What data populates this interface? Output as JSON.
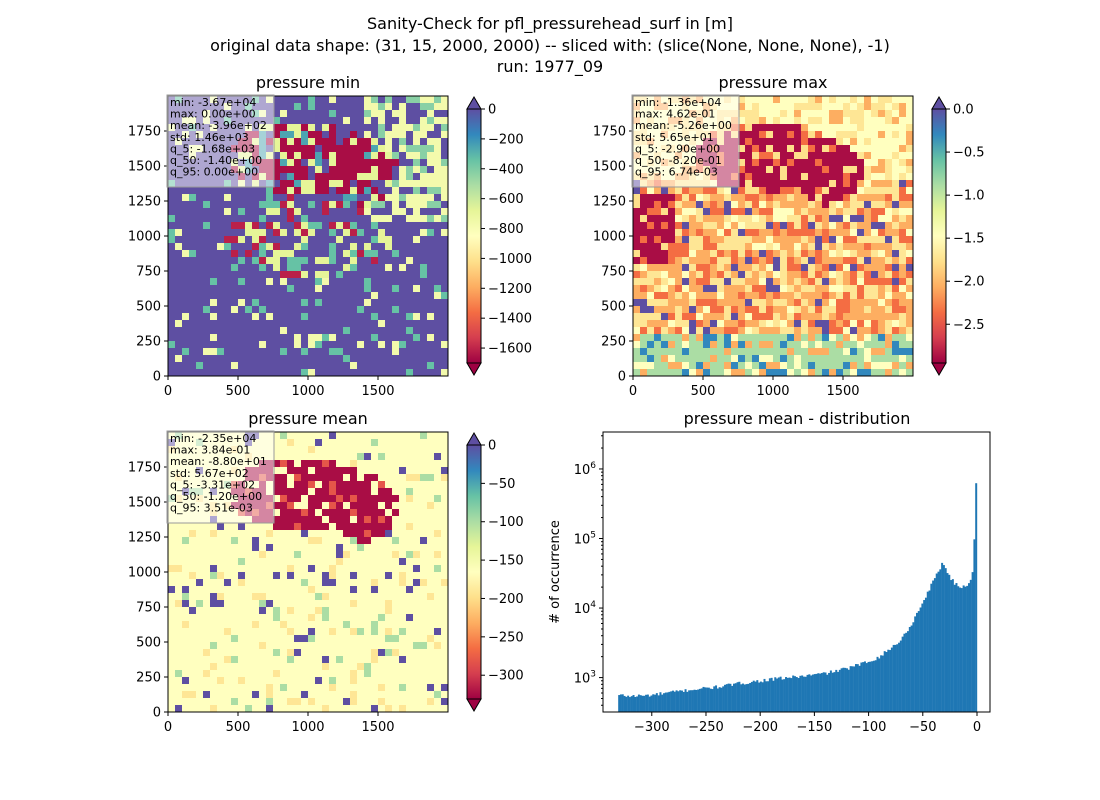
{
  "figure": {
    "title_lines": [
      "Sanity-Check for pfl_pressurehead_surf in [m]",
      "original data shape: (31, 15, 2000, 2000) -- sliced with: (slice(None, None, None), -1)",
      "run: 1977_09"
    ]
  },
  "chart_data": [
    {
      "type": "heatmap",
      "title": "pressure min",
      "colormap": "Spectral",
      "xlim": [
        0,
        2000
      ],
      "ylim": [
        0,
        2000
      ],
      "xticks": [
        0,
        500,
        1000,
        1500
      ],
      "yticks": [
        0,
        250,
        500,
        750,
        1000,
        1250,
        1500,
        1750
      ],
      "colorbar": {
        "range": [
          -1700,
          0
        ],
        "ticks": [
          0,
          -200,
          -400,
          -600,
          -800,
          -1000,
          -1200,
          -1400,
          -1600
        ],
        "tick_labels": [
          "0",
          "−200",
          "−400",
          "−600",
          "−800",
          "−1000",
          "−1200",
          "−1400",
          "−1600"
        ],
        "extend": "both"
      },
      "stats": [
        "min: -3.67e+04",
        "max: 0.00e+00",
        "mean: -3.96e+02",
        "std: 1.46e+03",
        "q_5: -1.68e+03",
        "q_50: -1.40e+00",
        "q_95: 0.00e+00"
      ]
    },
    {
      "type": "heatmap",
      "title": "pressure max",
      "colormap": "Spectral",
      "xlim": [
        0,
        2000
      ],
      "ylim": [
        0,
        2000
      ],
      "xticks": [
        0,
        500,
        1000,
        1500
      ],
      "yticks": [
        0,
        250,
        500,
        750,
        1000,
        1250,
        1500,
        1750
      ],
      "colorbar": {
        "range": [
          -2.95,
          0
        ],
        "ticks": [
          0,
          -0.5,
          -1,
          -1.5,
          -2,
          -2.5
        ],
        "tick_labels": [
          "0.0",
          "−0.5",
          "−1.0",
          "−1.5",
          "−2.0",
          "−2.5"
        ],
        "extend": "both"
      },
      "stats": [
        "min: -1.36e+04",
        "max: 4.62e-01",
        "mean: -5.26e+00",
        "std: 5.65e+01",
        "q_5: -2.90e+00",
        "q_50: -8.20e-01",
        "q_95: 6.74e-03"
      ]
    },
    {
      "type": "heatmap",
      "title": "pressure mean",
      "colormap": "Spectral",
      "xlim": [
        0,
        2000
      ],
      "ylim": [
        0,
        2000
      ],
      "xticks": [
        0,
        500,
        1000,
        1500
      ],
      "yticks": [
        0,
        250,
        500,
        750,
        1000,
        1250,
        1500,
        1750
      ],
      "colorbar": {
        "range": [
          -331,
          0
        ],
        "ticks": [
          0,
          -50,
          -100,
          -150,
          -200,
          -250,
          -300
        ],
        "tick_labels": [
          "0",
          "−50",
          "−100",
          "−150",
          "−200",
          "−250",
          "−300"
        ],
        "extend": "both"
      },
      "stats": [
        "min: -2.35e+04",
        "max: 3.84e-01",
        "mean: -8.80e+01",
        "std: 5.67e+02",
        "q_5: -3.31e+02",
        "q_50: -1.20e+00",
        "q_95: 3.51e-03"
      ]
    },
    {
      "type": "bar",
      "title": "pressure mean - distribution",
      "ylabel": "# of occurrence",
      "xlabel": "",
      "yscale": "log",
      "xlim": [
        -345,
        12
      ],
      "ylim": [
        320,
        3400000
      ],
      "xticks": [
        -300,
        -250,
        -200,
        -150,
        -100,
        -50,
        0
      ],
      "xtick_labels": [
        "−300",
        "−250",
        "−200",
        "−150",
        "−100",
        "−50",
        "0"
      ],
      "yticks": [
        1000,
        10000,
        100000,
        1000000
      ],
      "color": "#1f77b4",
      "bin_range": [
        -331,
        0
      ],
      "bins": 200,
      "anchors": [
        [
          -331,
          560
        ],
        [
          -320,
          540
        ],
        [
          -300,
          560
        ],
        [
          -280,
          620
        ],
        [
          -260,
          680
        ],
        [
          -240,
          730
        ],
        [
          -220,
          820
        ],
        [
          -200,
          900
        ],
        [
          -180,
          980
        ],
        [
          -160,
          1050
        ],
        [
          -140,
          1150
        ],
        [
          -120,
          1350
        ],
        [
          -100,
          1700
        ],
        [
          -90,
          2000
        ],
        [
          -80,
          2600
        ],
        [
          -70,
          3500
        ],
        [
          -60,
          6000
        ],
        [
          -50,
          12000
        ],
        [
          -40,
          25000
        ],
        [
          -34,
          38000
        ],
        [
          -32,
          45000
        ],
        [
          -30,
          40000
        ],
        [
          -25,
          28000
        ],
        [
          -20,
          22000
        ],
        [
          -15,
          20000
        ],
        [
          -10,
          21000
        ],
        [
          -6,
          25000
        ],
        [
          -4,
          35000
        ],
        [
          -3,
          60000
        ],
        [
          -2,
          150000
        ],
        [
          -1,
          500000
        ],
        [
          0,
          2300000
        ]
      ]
    }
  ]
}
